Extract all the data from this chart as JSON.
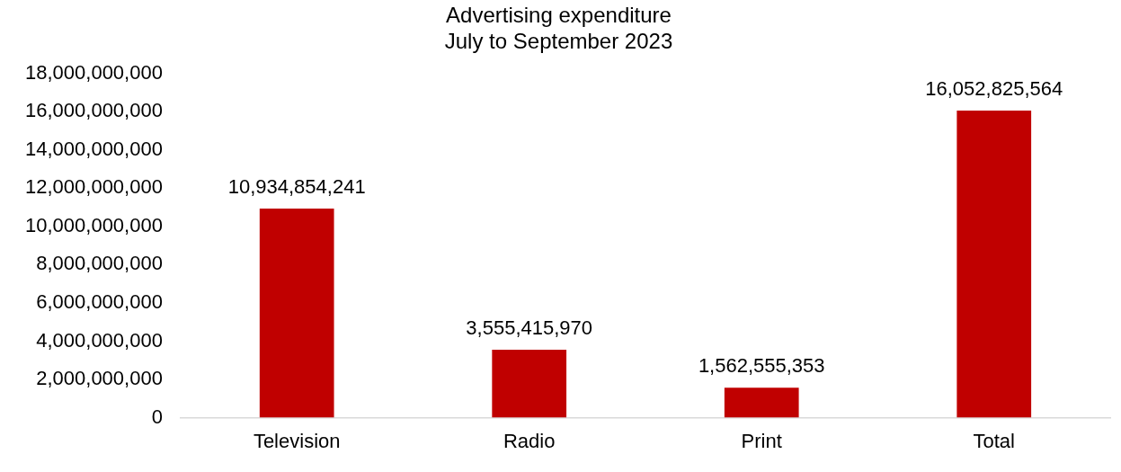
{
  "chart_data": {
    "type": "bar",
    "title": "Advertising expenditure",
    "subtitle": "July to September 2023",
    "categories": [
      "Television",
      "Radio",
      "Print",
      "Total"
    ],
    "values": [
      10934854241,
      3555415970,
      1562555353,
      16052825564
    ],
    "value_labels": [
      "10,934,854,241",
      "3,555,415,970",
      "1,562,555,353",
      "16,052,825,564"
    ],
    "color": "#c00000",
    "ylim": [
      0,
      18000000000
    ],
    "yticks": [
      0,
      {
        "value": 2000000000,
        "label": "2,000,000,000"
      },
      {
        "value": 4000000000,
        "label": "4,000,000,000"
      },
      {
        "value": 6000000000,
        "label": "6,000,000,000"
      },
      {
        "value": 8000000000,
        "label": "8,000,000,000"
      },
      {
        "value": 10000000000,
        "label": "10,000,000,000"
      },
      {
        "value": 12000000000,
        "label": "12,000,000,000"
      },
      {
        "value": 14000000000,
        "label": "14,000,000,000"
      },
      {
        "value": 16000000000,
        "label": "16,000,000,000"
      },
      {
        "value": 18000000000,
        "label": "18,000,000,000"
      }
    ],
    "grid": false,
    "legend": false
  }
}
